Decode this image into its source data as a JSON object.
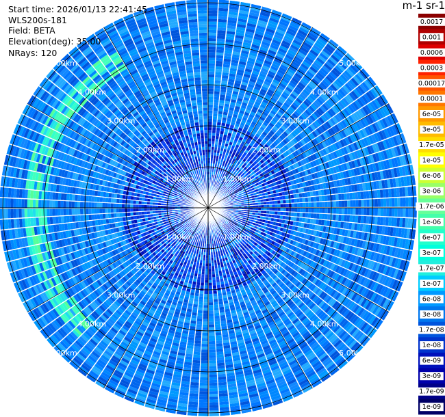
{
  "header": {
    "start_time": "Start time: 2026/01/13 22:41:45",
    "instrument": "WLS200s-181",
    "field": "Field: BETA",
    "elevation": "Elevation(deg): 35.00",
    "nrays": "NRays: 120"
  },
  "colorbar": {
    "unit_label": "m-1 sr-1",
    "tick_labels": [
      "0.0017",
      "0.001",
      "0.0006",
      "0.0003",
      "0.00017",
      "0.0001",
      "6e-05",
      "3e-05",
      "1.7e-05",
      "1e-05",
      "6e-06",
      "3e-06",
      "1.7e-06",
      "1e-06",
      "6e-07",
      "3e-07",
      "1.7e-07",
      "1e-07",
      "6e-08",
      "3e-08",
      "1.7e-08",
      "1e-08",
      "6e-09",
      "3e-09",
      "1.7e-09",
      "1e-09"
    ],
    "colors": [
      "#8b0000",
      "#b00000",
      "#dd0000",
      "#ff2200",
      "#ff5500",
      "#ff7700",
      "#ff9900",
      "#ffbb00",
      "#ffdd00",
      "#ffff00",
      "#ccff33",
      "#99ff66",
      "#66ff99",
      "#44ffaa",
      "#22ffcc",
      "#00ffdd",
      "#22eedd",
      "#00ccff",
      "#0099ff",
      "#0077ee",
      "#0055dd",
      "#0033cc",
      "#0011bb",
      "#0000aa",
      "#000088",
      "#000066"
    ]
  },
  "chart_data": {
    "type": "heatmap",
    "projection": "polar-ppi",
    "rings_km": [
      1,
      2,
      3,
      4,
      5
    ],
    "ring_labels": [
      "1.00km",
      "2.00km",
      "3.00km",
      "4.00km",
      "5.00km"
    ],
    "max_range_km": 5.0,
    "n_rays": 120,
    "azimuth_spokes_deg": [
      0,
      30,
      60,
      90,
      120,
      150,
      180,
      210,
      240,
      270,
      300,
      330
    ],
    "field": "BETA",
    "background_level": "3e-08",
    "enhanced_arc": {
      "azimuth_range_deg": [
        225,
        330
      ],
      "range_km": [
        3.9,
        4.5
      ],
      "level": "3e-07"
    },
    "near_range_level": "1e-08"
  }
}
